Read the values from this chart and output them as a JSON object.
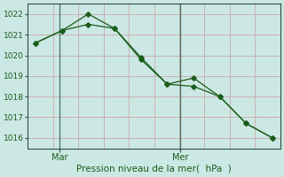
{
  "line1_x": [
    0,
    1,
    2,
    3,
    4,
    5,
    6,
    7,
    8,
    9
  ],
  "line1_y": [
    1020.6,
    1021.2,
    1021.5,
    1021.3,
    1019.8,
    1018.6,
    1018.5,
    1018.0,
    1016.7,
    1016.0
  ],
  "line2_x": [
    0,
    1,
    2,
    3,
    4,
    5,
    6,
    7,
    8,
    9
  ],
  "line2_y": [
    1020.6,
    1021.2,
    1022.0,
    1021.3,
    1019.9,
    1018.6,
    1018.9,
    1018.0,
    1016.7,
    1016.0
  ],
  "xlabel": "Pression niveau de la mer(  hPa  )",
  "yticks": [
    1016,
    1017,
    1018,
    1019,
    1020,
    1021,
    1022
  ],
  "ylim": [
    1015.5,
    1022.5
  ],
  "xlim": [
    -0.3,
    9.3
  ],
  "mar_x": 0.9,
  "mer_x": 5.5,
  "line_color": "#1a5c1a",
  "bg_color": "#cce8e4",
  "grid_color": "#c8a8a8",
  "vline_color": "#4a7060",
  "axis_color": "#2a5040",
  "marker": "D",
  "markersize": 2.8,
  "linewidth": 0.9,
  "xlabel_fontsize": 7.5,
  "ytick_fontsize": 6.5,
  "xtick_fontsize": 7.0
}
